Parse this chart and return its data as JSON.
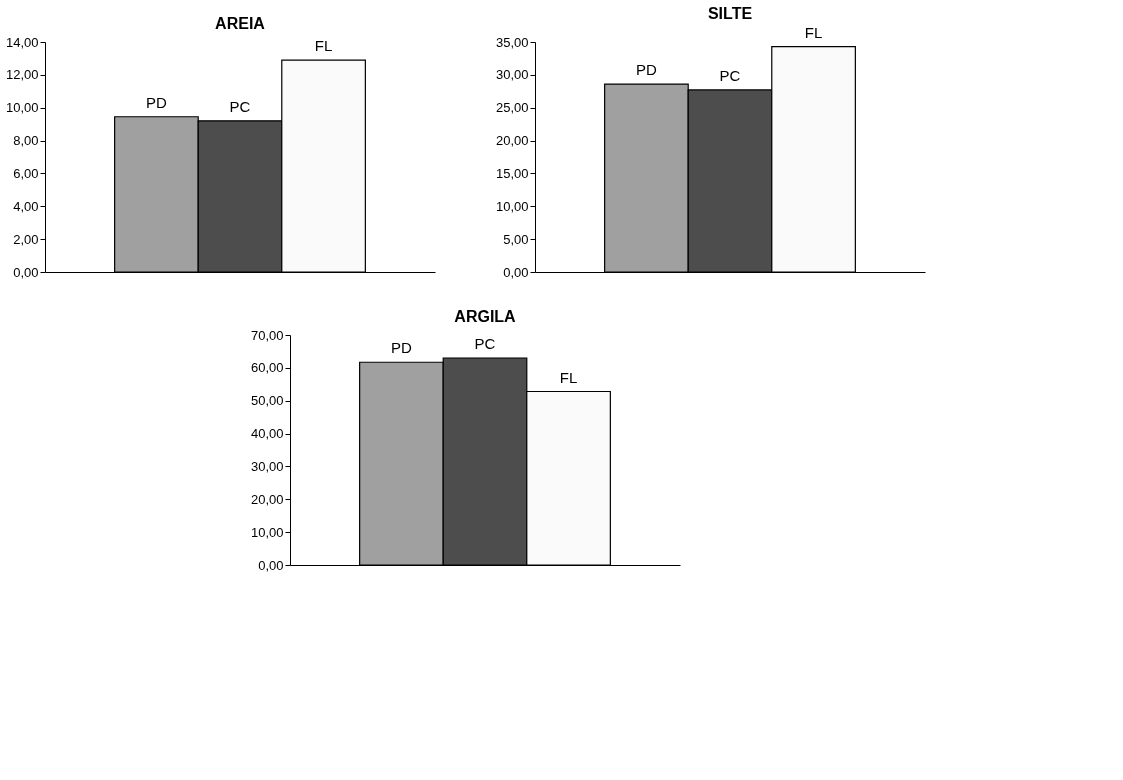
{
  "chart_data": [
    {
      "type": "bar",
      "title": "AREIA",
      "categories": [
        null
      ],
      "ylim": [
        0,
        14
      ],
      "yticks": [
        {
          "value": 0,
          "label": "0,00"
        },
        {
          "value": 2,
          "label": "2,00"
        },
        {
          "value": 4,
          "label": "4,00"
        },
        {
          "value": 6,
          "label": "6,00"
        },
        {
          "value": 8,
          "label": "8,00"
        },
        {
          "value": 10,
          "label": "10,00"
        },
        {
          "value": 12,
          "label": "12,00"
        },
        {
          "value": 14,
          "label": "14,00"
        }
      ],
      "grid": false,
      "legend": false,
      "tick_labels": "y",
      "series": [
        {
          "name": "PD",
          "color": "#a0a0a0",
          "values": [
            9.45
          ]
        },
        {
          "name": "PC",
          "color": "#4d4d4d",
          "values": [
            9.2
          ]
        },
        {
          "name": "FL",
          "color": "#fafafa",
          "values": [
            12.9
          ]
        }
      ]
    },
    {
      "type": "bar",
      "title": "SILTE",
      "categories": [
        null
      ],
      "ylim": [
        0,
        35
      ],
      "yticks": [
        {
          "value": 0,
          "label": "0,00"
        },
        {
          "value": 5,
          "label": "5,00"
        },
        {
          "value": 10,
          "label": "10,00"
        },
        {
          "value": 15,
          "label": "15,00"
        },
        {
          "value": 20,
          "label": "20,00"
        },
        {
          "value": 25,
          "label": "25,00"
        },
        {
          "value": 30,
          "label": "30,00"
        },
        {
          "value": 35,
          "label": "35,00"
        }
      ],
      "grid": false,
      "legend": false,
      "tick_labels": "y",
      "series": [
        {
          "name": "PD",
          "color": "#a0a0a0",
          "values": [
            28.6
          ]
        },
        {
          "name": "PC",
          "color": "#4d4d4d",
          "values": [
            27.7
          ]
        },
        {
          "name": "FL",
          "color": "#fafafa",
          "values": [
            34.3
          ]
        }
      ]
    },
    {
      "type": "bar",
      "title": "ARGILA",
      "categories": [
        null
      ],
      "ylim": [
        0,
        70
      ],
      "yticks": [
        {
          "value": 0,
          "label": "0,00"
        },
        {
          "value": 10,
          "label": "10,00"
        },
        {
          "value": 20,
          "label": "20,00"
        },
        {
          "value": 30,
          "label": "30,00"
        },
        {
          "value": 40,
          "label": "40,00"
        },
        {
          "value": 50,
          "label": "50,00"
        },
        {
          "value": 60,
          "label": "60,00"
        },
        {
          "value": 70,
          "label": "70,00"
        }
      ],
      "grid": false,
      "legend": false,
      "tick_labels": "y",
      "series": [
        {
          "name": "PD",
          "color": "#a0a0a0",
          "values": [
            61.7
          ]
        },
        {
          "name": "PC",
          "color": "#4d4d4d",
          "values": [
            63.0
          ]
        },
        {
          "name": "FL",
          "color": "#fafafa",
          "values": [
            52.8
          ]
        }
      ]
    }
  ]
}
